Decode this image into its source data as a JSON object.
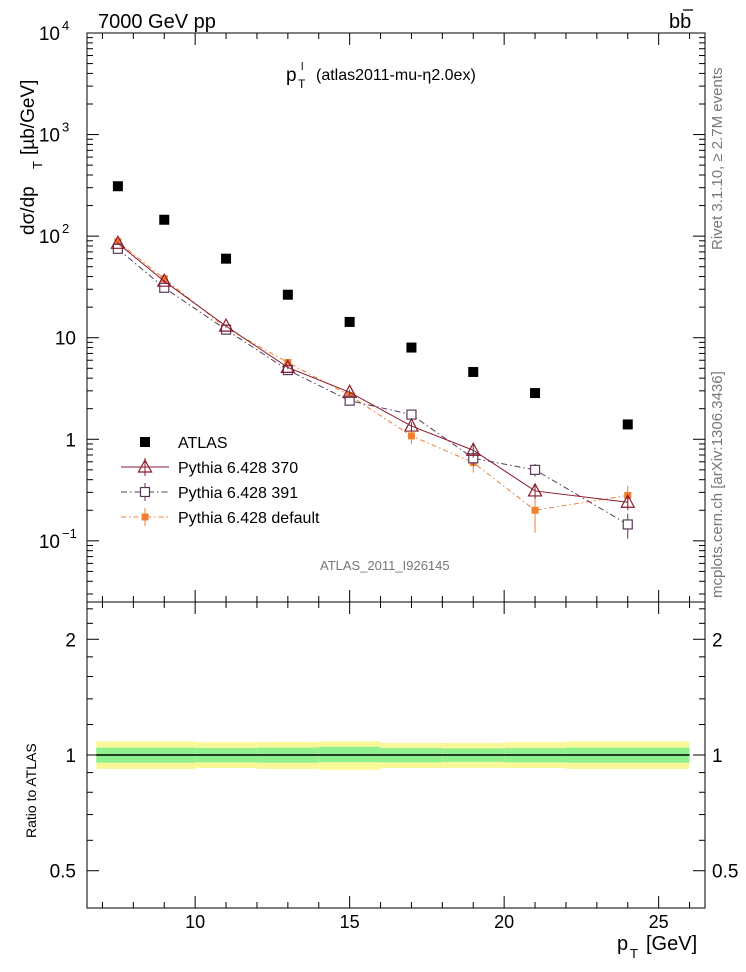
{
  "header": {
    "energy": "7000 GeV pp",
    "process": "bb",
    "side_top": "Rivet 3.1.10, ≥ 2.7M events",
    "side_bottom": "mcplots.cern.ch [arXiv:1306.3436]",
    "watermark": "ATLAS_2011_I926145"
  },
  "title": {
    "main": "p",
    "sub": "T",
    "sup": "l",
    "rest": "(atlas2011-mu-η2.0ex)"
  },
  "axes": {
    "ylabel_top": "dσ/dp",
    "ylabel_top_sub": "T",
    "ylabel_top_unit": "[µb/GeV]",
    "ylabel_bottom": "Ratio to ATLAS",
    "xlabel": "p",
    "xlabel_sub": "T",
    "xlabel_unit": "[GeV]"
  },
  "colors": {
    "atlas": "#000000",
    "p370": "#8b1a2b",
    "p391": "#5a3a5a",
    "pdefault": "#f07f30",
    "band_inner": "#8ef08e",
    "band_outer": "#f8f898"
  },
  "chart_data": [
    {
      "type": "scatter",
      "log_y": true,
      "xlim": [
        6.5,
        26.5
      ],
      "ylim": [
        0.025,
        10000
      ],
      "x_ticks": [
        10,
        15,
        20,
        25
      ],
      "y_ticks": [
        {
          "value": 0.1,
          "label": "10",
          "exp": "−1"
        },
        {
          "value": 1,
          "label": "1",
          "exp": ""
        },
        {
          "value": 10,
          "label": "10",
          "exp": ""
        },
        {
          "value": 100,
          "label": "10",
          "exp": "2"
        },
        {
          "value": 1000,
          "label": "10",
          "exp": "3"
        },
        {
          "value": 10000,
          "label": "10",
          "exp": "4"
        }
      ],
      "legend_position": "lower-left",
      "series": [
        {
          "name": "ATLAS",
          "style": "data",
          "x": [
            7.5,
            9,
            11,
            13,
            15,
            17,
            19,
            21,
            24
          ],
          "y": [
            310,
            145,
            60,
            26.5,
            14.3,
            8.0,
            4.6,
            2.85,
            1.4
          ]
        },
        {
          "name": "Pythia 6.428 370",
          "style": "triangle",
          "x": [
            7.5,
            9,
            11,
            13,
            15,
            17,
            19,
            21,
            24
          ],
          "y": [
            85,
            36,
            13,
            5.1,
            2.9,
            1.35,
            0.78,
            0.31,
            0.24
          ],
          "err": [
            3,
            1.2,
            0.4,
            0.2,
            0.15,
            0.12,
            0.12,
            0.05,
            0.04
          ]
        },
        {
          "name": "Pythia 6.428 391",
          "style": "square-open",
          "x": [
            7.5,
            9,
            11,
            13,
            15,
            17,
            19,
            21,
            24
          ],
          "y": [
            75,
            31,
            12,
            4.8,
            2.4,
            1.75,
            0.65,
            0.5,
            0.145
          ],
          "err": [
            3,
            1.0,
            0.4,
            0.2,
            0.2,
            0.15,
            0.1,
            0.07,
            0.04
          ]
        },
        {
          "name": "Pythia 6.428 default",
          "style": "square-filled",
          "x": [
            7.5,
            9,
            11,
            13,
            15,
            17,
            19,
            21,
            24
          ],
          "y": [
            88,
            38,
            12.5,
            5.7,
            2.7,
            1.08,
            0.59,
            0.2,
            0.28
          ],
          "err": [
            3,
            1.3,
            0.5,
            0.25,
            0.2,
            0.18,
            0.12,
            0.08,
            0.07
          ]
        }
      ]
    },
    {
      "type": "area",
      "log_y": true,
      "xlim": [
        6.5,
        26.5
      ],
      "ylim": [
        0.4,
        2.5
      ],
      "y_ticks": [
        0.5,
        1,
        2
      ],
      "x_ticks": [
        10,
        15,
        20,
        25
      ],
      "bins": [
        6.8,
        8.2,
        10,
        12,
        14,
        16,
        18,
        20,
        22,
        26
      ],
      "inner_lo": [
        0.955,
        0.955,
        0.957,
        0.955,
        0.958,
        0.957,
        0.96,
        0.957,
        0.955
      ],
      "inner_hi": [
        1.045,
        1.045,
        1.043,
        1.045,
        1.05,
        1.042,
        1.04,
        1.042,
        1.045
      ],
      "outer_lo": [
        0.92,
        0.92,
        0.925,
        0.92,
        0.915,
        0.925,
        0.925,
        0.925,
        0.92
      ],
      "outer_hi": [
        1.085,
        1.085,
        1.08,
        1.082,
        1.085,
        1.075,
        1.075,
        1.08,
        1.085
      ]
    }
  ]
}
